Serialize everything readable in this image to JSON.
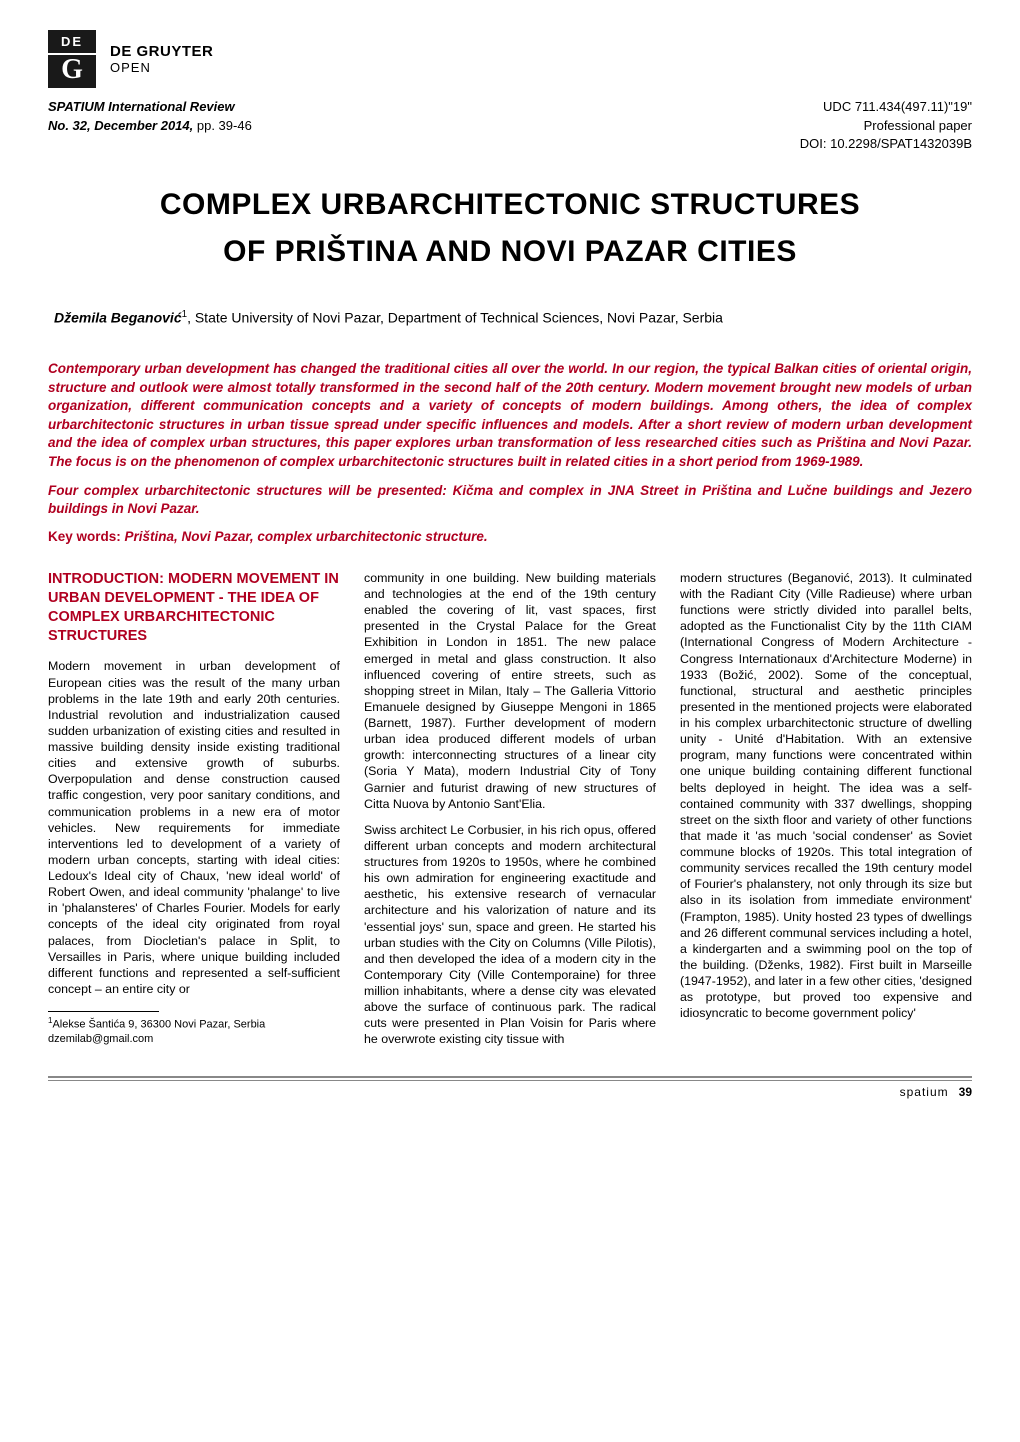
{
  "publisher": {
    "logo_de": "DE",
    "logo_g": "G",
    "name": "DE GRUYTER",
    "sub": "OPEN"
  },
  "header": {
    "left": {
      "journal": "SPATIUM International Review",
      "issue": "No. 32, December 2014,",
      "pages": "pp. 39-46"
    },
    "right": {
      "udc": "UDC 711.434(497.11)\"19\"",
      "type": "Professional paper",
      "doi": "DOI: 10.2298/SPAT1432039B"
    }
  },
  "title_line1": "COMPLEX URBARCHITECTONIC STRUCTURES",
  "title_line2": "OF PRIŠTINA AND NOVI PAZAR CITIES",
  "author": {
    "name": "Džemila Beganović",
    "sup": "1",
    "affil": ", State University of Novi Pazar, Department of Technical Sciences, Novi Pazar, Serbia"
  },
  "abstract": {
    "p1": "Contemporary urban development has changed the traditional cities all over the world. In our region, the typical Balkan cities of oriental origin, structure and outlook were almost totally transformed in the second half of the 20th century. Modern movement brought new models of urban organization, different communication concepts and a variety of concepts of modern buildings. Among others, the idea of complex urbarchitectonic structures in urban tissue spread under specific influences and models. After a short review of modern urban development and the idea of complex urban structures, this paper explores urban transformation of less researched cities such as Priština and Novi Pazar. The focus is on the phenomenon of complex urbarchitectonic structures built in related cities in a short period from 1969-1989.",
    "p2": "Four complex urbarchitectonic structures will be presented: Kičma and complex in JNA Street in Priština and Lučne buildings and Jezero buildings in Novi Pazar.",
    "keywords_label": "Key words:",
    "keywords_text": " Priština, Novi Pazar, complex urbarchitectonic structure."
  },
  "section_heading": "INTRODUCTION: MODERN MOVEMENT IN URBAN DEVELOPMENT - THE IDEA OF COMPLEX URBARCHITECTONIC STRUCTURES",
  "col1": {
    "p1": "Modern movement in urban development of European cities was the result of the many urban problems in the late 19th and early 20th centuries. Industrial revolution and industrialization caused sudden urbanization of existing cities and resulted in massive building density inside existing traditional cities and extensive growth of suburbs. Overpopulation and dense construction caused traffic congestion, very poor sanitary conditions, and communication problems in a new era of motor vehicles. New requirements for immediate interventions led to development of a variety of modern urban concepts, starting with ideal cities: Ledoux's Ideal city of Chaux, 'new ideal world' of Robert Owen, and ideal community 'phalange' to live in 'phalansteres' of Charles Fourier. Models for early concepts of the ideal city originated from royal palaces, from Diocletian's palace in Split, to Versailles in Paris, where unique building included different functions and represented a self-sufficient concept – an entire city or"
  },
  "footnote": {
    "sup": "1",
    "addr": "Alekse Šantića 9, 36300 Novi Pazar, Serbia",
    "email": "dzemilab@gmail.com"
  },
  "col2": {
    "p1": "community in one building. New building materials and technologies at the end of the 19th century enabled the covering of lit, vast spaces, first presented in the Crystal Palace for the Great Exhibition in London in 1851. The new palace emerged in metal and glass construction. It also influenced covering of entire streets, such as shopping street in Milan, Italy – The Galleria Vittorio Emanuele designed by Giuseppe Mengoni in 1865 (Barnett, 1987). Further development of modern urban idea produced different models of urban growth: interconnecting structures of a linear city (Soria Y Mata), modern Industrial City of Tony Garnier and futurist drawing of new structures of Citta Nuova by Antonio Sant'Elia.",
    "p2": "Swiss architect Le Corbusier, in his rich opus, offered different urban concepts and modern architectural structures from 1920s to 1950s, where he combined his own admiration for engineering exactitude and aesthetic, his extensive research of vernacular architecture and his valorization of nature and its 'essential joys' sun, space and green. He started his urban studies with the City on Columns (Ville Pilotis), and then developed the idea of a modern city in the Contemporary City (Ville Contemporaine) for three million inhabitants, where a dense city was elevated above the surface of continuous park. The radical cuts were presented in Plan Voisin for Paris where he overwrote existing city tissue with"
  },
  "col3": {
    "p1": "modern structures (Beganović, 2013). It culminated with the Radiant City (Ville Radieuse) where urban functions were strictly divided into parallel belts, adopted as the Functionalist City by the 11th CIAM (International Congress of Modern Architecture - Congress Internationaux d'Architecture Moderne) in 1933 (Božić, 2002). Some of the conceptual, functional, structural and aesthetic principles presented in the mentioned projects were elaborated in his complex urbarchitectonic structure of dwelling unity - Unité d'Habitation. With an extensive program, many functions were concentrated within one unique building containing different functional belts deployed in height. The idea was a self-contained community with 337 dwellings, shopping street on the sixth floor and variety of other functions that made it 'as much 'social condenser' as Soviet commune blocks of 1920s. This total integration of community services recalled the 19th century model of Fourier's phalanstery, not only through its size but also in its isolation from immediate environment' (Frampton, 1985). Unity hosted 23 types of dwellings and 26 different communal services including a hotel, a kindergarten and a swimming pool on the top of the building. (Dženks, 1982). First built in Marseille (1947-1952), and later in a few other cities, 'designed as prototype, but proved too expensive and idiosyncratic to become government policy'"
  },
  "footer": {
    "label": "spatium",
    "page": "39"
  },
  "colors": {
    "accent": "#b00020",
    "text": "#000000",
    "logo_bg": "#191919",
    "rule": "#888888"
  }
}
